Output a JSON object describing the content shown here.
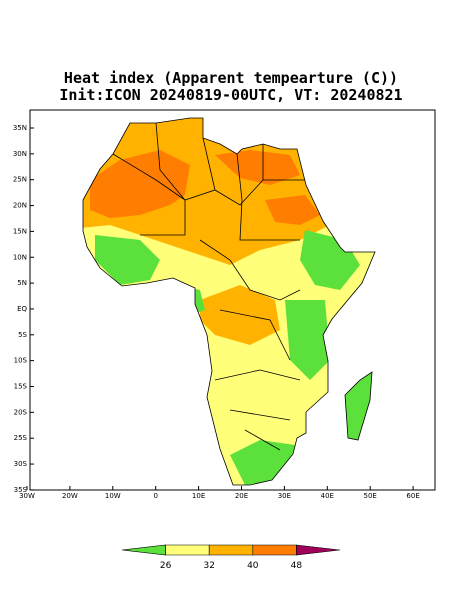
{
  "header": {
    "title": "Heat index (Apparent tempearture (C))",
    "subtitle": "Init:ICON 20240819-00UTC, VT: 20240821"
  },
  "map": {
    "lat_ticks": [
      "35N",
      "30N",
      "25N",
      "20N",
      "15N",
      "10N",
      "5N",
      "EQ",
      "5S",
      "10S",
      "15S",
      "20S",
      "25S",
      "30S",
      "35S"
    ],
    "lon_ticks": [
      "30W",
      "20W",
      "10W",
      "0",
      "10E",
      "20E",
      "30E",
      "40E",
      "50E",
      "60E"
    ]
  },
  "colorbar": {
    "labels": [
      26,
      32,
      40,
      48
    ],
    "colors": [
      "#5ce03c",
      "#ffff7a",
      "#ffb300",
      "#ff7d00",
      "#a0005a"
    ]
  }
}
